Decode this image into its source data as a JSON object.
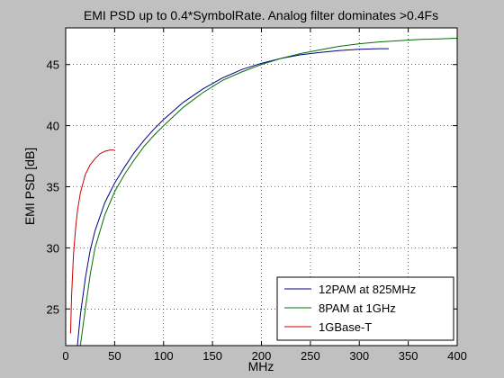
{
  "chart_data": {
    "type": "line",
    "title": "EMI PSD up to 0.4*SymbolRate. Analog filter dominates >0.4Fs",
    "xlabel": "MHz",
    "ylabel": "EMI PSD [dB]",
    "xlim": [
      0,
      400
    ],
    "ylim": [
      22,
      48
    ],
    "xticks": [
      0,
      50,
      100,
      150,
      200,
      250,
      300,
      350,
      400
    ],
    "yticks": [
      25,
      30,
      35,
      40,
      45
    ],
    "grid": true,
    "grid_style": "dotted",
    "legend_position": "bottom-right",
    "colors": {
      "figure_background": "#c0c0c0",
      "axes_background": "#ffffff"
    },
    "series": [
      {
        "name": "12PAM at 825MHz",
        "color": "#00008b",
        "x": [
          12,
          15,
          20,
          25,
          30,
          40,
          50,
          60,
          70,
          80,
          90,
          100,
          120,
          140,
          160,
          180,
          200,
          220,
          240,
          260,
          280,
          300,
          320,
          330
        ],
        "y": [
          22.0,
          24.5,
          27.5,
          29.8,
          31.4,
          33.7,
          35.3,
          36.6,
          37.8,
          38.8,
          39.7,
          40.5,
          41.9,
          43.0,
          43.9,
          44.6,
          45.1,
          45.5,
          45.8,
          46.0,
          46.15,
          46.25,
          46.3,
          46.3
        ]
      },
      {
        "name": "8PAM at 1GHz",
        "color": "#007000",
        "x": [
          15,
          20,
          25,
          30,
          40,
          50,
          60,
          70,
          80,
          90,
          100,
          120,
          140,
          160,
          180,
          200,
          220,
          240,
          260,
          280,
          300,
          320,
          340,
          360,
          380,
          400
        ],
        "y": [
          22.0,
          25.0,
          27.8,
          30.0,
          32.7,
          34.6,
          36.0,
          37.2,
          38.3,
          39.2,
          40.0,
          41.5,
          42.7,
          43.7,
          44.4,
          45.0,
          45.5,
          45.9,
          46.2,
          46.5,
          46.7,
          46.85,
          46.95,
          47.05,
          47.1,
          47.15
        ]
      },
      {
        "name": "1GBase-T",
        "color": "#cc0000",
        "x": [
          5,
          6,
          8,
          10,
          12,
          15,
          20,
          25,
          30,
          35,
          40,
          45,
          50
        ],
        "y": [
          23.0,
          26.0,
          29.5,
          31.5,
          33.0,
          34.5,
          36.0,
          36.8,
          37.3,
          37.7,
          37.9,
          38.0,
          38.0
        ]
      }
    ]
  }
}
